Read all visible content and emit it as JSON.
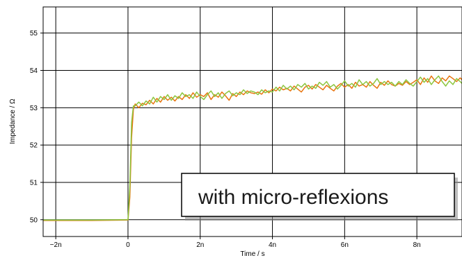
{
  "chart_data": {
    "type": "line",
    "xlabel": "Time / s",
    "ylabel": "Impedance / Ω",
    "xlim": [
      -2.35e-09,
      9.25e-09
    ],
    "ylim": [
      49.55,
      55.7
    ],
    "x_ticks": [
      {
        "value": -2e-09,
        "label": "−2n"
      },
      {
        "value": 0,
        "label": "0"
      },
      {
        "value": 2e-09,
        "label": "2n"
      },
      {
        "value": 4e-09,
        "label": "4n"
      },
      {
        "value": 6e-09,
        "label": "6n"
      },
      {
        "value": 8e-09,
        "label": "8n"
      }
    ],
    "y_ticks": [
      {
        "value": 50,
        "label": "50"
      },
      {
        "value": 51,
        "label": "51"
      },
      {
        "value": 52,
        "label": "52"
      },
      {
        "value": 53,
        "label": "53"
      },
      {
        "value": 54,
        "label": "54"
      },
      {
        "value": 55,
        "label": "55"
      }
    ],
    "grid": true,
    "annotation": "with micro-reflexions",
    "series": [
      {
        "color": "#e8750f",
        "x": [
          -2.35e-09,
          -2e-09,
          -1e-09,
          0,
          5e-11,
          1e-10,
          1.5e-10,
          2e-10,
          3e-10,
          4e-10,
          5e-10,
          6e-10,
          7e-10,
          8e-10,
          9e-10,
          1e-09,
          1.1e-09,
          1.2e-09,
          1.3e-09,
          1.4e-09,
          1.5e-09,
          1.6e-09,
          1.7e-09,
          1.8e-09,
          1.9e-09,
          2e-09,
          2.1e-09,
          2.2e-09,
          2.3e-09,
          2.4e-09,
          2.5e-09,
          2.6e-09,
          2.7e-09,
          2.8e-09,
          2.9e-09,
          3e-09,
          3.1e-09,
          3.2e-09,
          3.3e-09,
          3.4e-09,
          3.5e-09,
          3.6e-09,
          3.7e-09,
          3.8e-09,
          3.9e-09,
          4e-09,
          4.1e-09,
          4.2e-09,
          4.3e-09,
          4.4e-09,
          4.5e-09,
          4.6e-09,
          4.7e-09,
          4.8e-09,
          4.9e-09,
          5e-09,
          5.1e-09,
          5.2e-09,
          5.3e-09,
          5.4e-09,
          5.5e-09,
          5.6e-09,
          5.7e-09,
          5.8e-09,
          5.9e-09,
          6e-09,
          6.1e-09,
          6.2e-09,
          6.3e-09,
          6.4e-09,
          6.5e-09,
          6.6e-09,
          6.7e-09,
          6.8e-09,
          6.9e-09,
          7e-09,
          7.1e-09,
          7.2e-09,
          7.3e-09,
          7.4e-09,
          7.5e-09,
          7.6e-09,
          7.7e-09,
          7.8e-09,
          7.9e-09,
          8e-09,
          8.1e-09,
          8.2e-09,
          8.3e-09,
          8.4e-09,
          8.5e-09,
          8.6e-09,
          8.7e-09,
          8.8e-09,
          8.9e-09,
          9e-09,
          9.1e-09,
          9.2e-09,
          9.25e-09
        ],
        "y": [
          49.98,
          49.98,
          49.98,
          49.99,
          50.6,
          52.2,
          52.95,
          53.1,
          53.0,
          53.12,
          53.08,
          53.2,
          53.1,
          53.25,
          53.15,
          53.3,
          53.2,
          53.28,
          53.18,
          53.3,
          53.22,
          53.35,
          53.25,
          53.4,
          53.28,
          53.35,
          53.3,
          53.4,
          53.22,
          53.35,
          53.28,
          53.42,
          53.32,
          53.2,
          53.38,
          53.3,
          53.42,
          53.35,
          53.45,
          53.4,
          53.38,
          53.42,
          53.36,
          53.48,
          53.4,
          53.5,
          53.45,
          53.55,
          53.48,
          53.52,
          53.45,
          53.58,
          53.5,
          53.42,
          53.55,
          53.6,
          53.5,
          53.62,
          53.55,
          53.48,
          53.6,
          53.52,
          53.45,
          53.58,
          53.65,
          53.55,
          53.62,
          53.52,
          53.68,
          53.58,
          53.62,
          53.55,
          53.7,
          53.6,
          53.52,
          53.68,
          53.6,
          53.72,
          53.62,
          53.58,
          53.65,
          53.6,
          53.7,
          53.62,
          53.68,
          53.75,
          53.62,
          53.8,
          53.68,
          53.85,
          53.72,
          53.65,
          53.8,
          53.72,
          53.85,
          53.78,
          53.7,
          53.8,
          53.75
        ]
      },
      {
        "color": "#8cc63f",
        "x": [
          -2.35e-09,
          -2e-09,
          -1e-09,
          0,
          5e-11,
          1e-10,
          1.5e-10,
          2e-10,
          3e-10,
          4e-10,
          5e-10,
          6e-10,
          7e-10,
          8e-10,
          9e-10,
          1e-09,
          1.1e-09,
          1.2e-09,
          1.3e-09,
          1.4e-09,
          1.5e-09,
          1.6e-09,
          1.7e-09,
          1.8e-09,
          1.9e-09,
          2e-09,
          2.1e-09,
          2.2e-09,
          2.3e-09,
          2.4e-09,
          2.5e-09,
          2.6e-09,
          2.7e-09,
          2.8e-09,
          2.9e-09,
          3e-09,
          3.1e-09,
          3.2e-09,
          3.3e-09,
          3.4e-09,
          3.5e-09,
          3.6e-09,
          3.7e-09,
          3.8e-09,
          3.9e-09,
          4e-09,
          4.1e-09,
          4.2e-09,
          4.3e-09,
          4.4e-09,
          4.5e-09,
          4.6e-09,
          4.7e-09,
          4.8e-09,
          4.9e-09,
          5e-09,
          5.1e-09,
          5.2e-09,
          5.3e-09,
          5.4e-09,
          5.5e-09,
          5.6e-09,
          5.7e-09,
          5.8e-09,
          5.9e-09,
          6e-09,
          6.1e-09,
          6.2e-09,
          6.3e-09,
          6.4e-09,
          6.5e-09,
          6.6e-09,
          6.7e-09,
          6.8e-09,
          6.9e-09,
          7e-09,
          7.1e-09,
          7.2e-09,
          7.3e-09,
          7.4e-09,
          7.5e-09,
          7.6e-09,
          7.7e-09,
          7.8e-09,
          7.9e-09,
          8e-09,
          8.1e-09,
          8.2e-09,
          8.3e-09,
          8.4e-09,
          8.5e-09,
          8.6e-09,
          8.7e-09,
          8.8e-09,
          8.9e-09,
          9e-09,
          9.1e-09,
          9.2e-09,
          9.25e-09
        ],
        "y": [
          49.99,
          49.99,
          49.99,
          50.0,
          50.9,
          52.6,
          53.05,
          53.05,
          53.15,
          53.05,
          53.18,
          53.1,
          53.28,
          53.15,
          53.3,
          53.22,
          53.35,
          53.2,
          53.32,
          53.25,
          53.4,
          53.3,
          53.35,
          53.25,
          53.42,
          53.3,
          53.22,
          53.35,
          53.45,
          53.3,
          53.4,
          53.25,
          53.38,
          53.45,
          53.32,
          53.4,
          53.35,
          53.48,
          53.38,
          53.45,
          53.42,
          53.35,
          53.48,
          53.4,
          53.45,
          53.42,
          53.55,
          53.45,
          53.6,
          53.5,
          53.58,
          53.48,
          53.62,
          53.55,
          53.65,
          53.5,
          53.58,
          53.52,
          53.68,
          53.6,
          53.7,
          53.55,
          53.62,
          53.5,
          53.6,
          53.72,
          53.58,
          53.65,
          53.55,
          53.75,
          53.62,
          53.7,
          53.58,
          53.65,
          53.78,
          53.62,
          53.7,
          53.62,
          53.68,
          53.58,
          53.7,
          53.62,
          53.75,
          53.65,
          53.58,
          53.7,
          53.82,
          53.68,
          53.78,
          53.62,
          53.75,
          53.85,
          53.7,
          53.58,
          53.72,
          53.62,
          53.78,
          53.7,
          53.65
        ]
      }
    ]
  }
}
